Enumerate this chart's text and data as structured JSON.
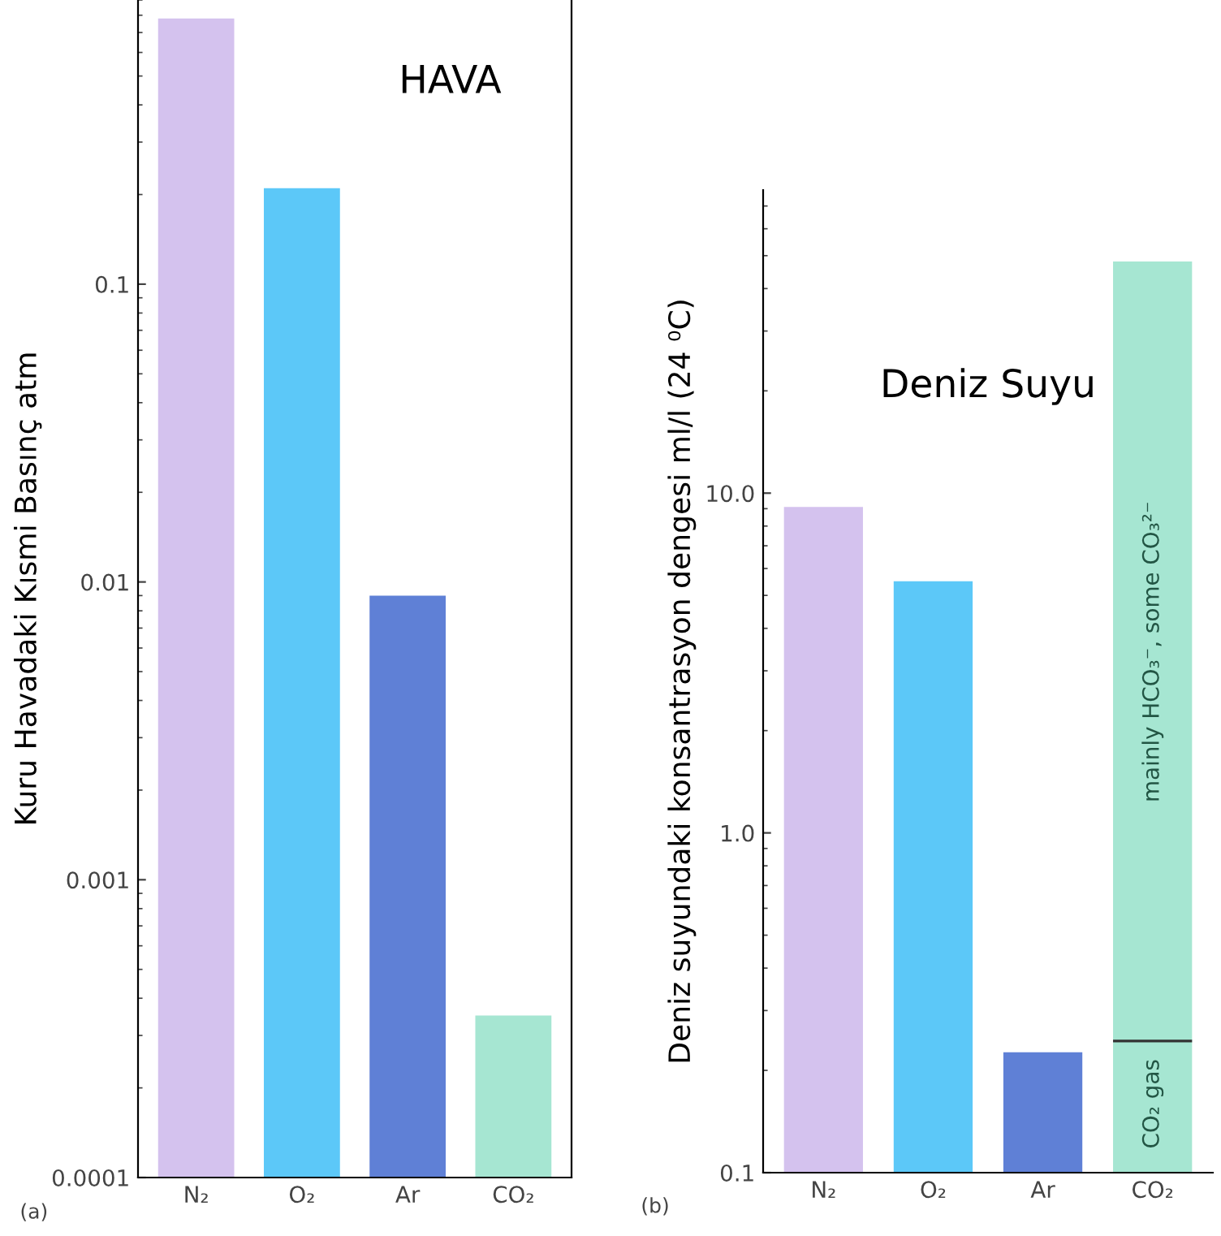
{
  "chart_data": [
    {
      "type": "bar",
      "title": "HAVA",
      "ylabel": "Kuru Havadaki Kısmi Basınç atm",
      "categories": [
        "N₂",
        "O₂",
        "Ar",
        "CO₂"
      ],
      "log": "y",
      "ylim": [
        0.0001,
        0.9
      ],
      "yticks": [
        0.0001,
        0.001,
        0.01,
        0.1
      ],
      "grid": false,
      "series": [
        {
          "colors": [
            "#d4c2ee",
            "#5cc8f8",
            "#5f80d6",
            "#a6e6d2"
          ],
          "values": [
            0.78,
            0.21,
            0.009,
            0.00035
          ]
        }
      ],
      "annotations": [
        "(a)"
      ]
    },
    {
      "type": "bar",
      "title": "Deniz Suyu",
      "ylabel": "Deniz suyundaki konsantrasyon dengesi ml/l (24 ⁰C)",
      "categories": [
        "N₂",
        "O₂",
        "Ar",
        "CO₂"
      ],
      "log": "y",
      "ylim": [
        0.1,
        78
      ],
      "yticks": [
        0.1,
        {
          "value": 1,
          "label": "1.0"
        },
        {
          "value": 10,
          "label": "10.0"
        }
      ],
      "grid": false,
      "series": [
        {
          "colors": [
            "#d4c2ee",
            "#5cc8f8",
            "#5f80d6",
            "#a6e6d2"
          ],
          "values": [
            9.1,
            5.5,
            0.226,
            0.244
          ]
        },
        {
          "colors": [
            null,
            null,
            null,
            "#a6e6d2"
          ],
          "base": [
            null,
            null,
            null,
            0.244
          ],
          "values": [
            null,
            null,
            null,
            47.8
          ]
        }
      ],
      "annotations": [
        "CO₂ gas",
        "mainly HCO₃⁻, some CO₃²⁻",
        "(b)"
      ]
    }
  ]
}
